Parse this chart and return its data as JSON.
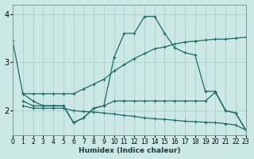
{
  "xlabel": "Humidex (Indice chaleur)",
  "bg_color": "#cce8e5",
  "grid_color": "#aacfcb",
  "line_color": "#1b6b68",
  "xlim": [
    0,
    23
  ],
  "ylim": [
    1.5,
    4.2
  ],
  "yticks": [
    2,
    3,
    4
  ],
  "xticks": [
    0,
    1,
    2,
    3,
    4,
    5,
    6,
    7,
    8,
    9,
    10,
    11,
    12,
    13,
    14,
    15,
    16,
    17,
    18,
    19,
    20,
    21,
    22,
    23
  ],
  "lines": [
    {
      "x": [
        0,
        1,
        2,
        3,
        4,
        5,
        6,
        7,
        8,
        9,
        10,
        11,
        12,
        13,
        14,
        15,
        16,
        17,
        18,
        19,
        20,
        21,
        22,
        23
      ],
      "y": [
        3.45,
        2.35,
        2.2,
        2.1,
        2.1,
        2.1,
        1.75,
        1.85,
        2.05,
        2.1,
        3.1,
        3.6,
        3.6,
        3.95,
        3.95,
        3.6,
        3.3,
        3.2,
        3.15,
        2.4,
        2.4,
        2.0,
        1.95,
        1.6
      ]
    },
    {
      "x": [
        1,
        2,
        3,
        4,
        5,
        6,
        7,
        8,
        9,
        10,
        11,
        12,
        13,
        14,
        15,
        16,
        17,
        18,
        19,
        20,
        21,
        22,
        23
      ],
      "y": [
        2.35,
        2.35,
        2.35,
        2.35,
        2.35,
        2.35,
        2.45,
        2.55,
        2.65,
        2.82,
        2.95,
        3.08,
        3.18,
        3.28,
        3.32,
        3.38,
        3.42,
        3.44,
        3.46,
        3.48,
        3.48,
        3.5,
        3.52
      ]
    },
    {
      "x": [
        1,
        2,
        3,
        4,
        5,
        6,
        7,
        8,
        9,
        10,
        11,
        12,
        13,
        14,
        15,
        16,
        17,
        18,
        19,
        20,
        21,
        22,
        23
      ],
      "y": [
        2.2,
        2.1,
        2.1,
        2.1,
        2.1,
        1.75,
        1.85,
        2.05,
        2.1,
        2.2,
        2.2,
        2.2,
        2.2,
        2.2,
        2.2,
        2.2,
        2.2,
        2.2,
        2.2,
        2.38,
        2.0,
        1.95,
        1.6
      ]
    },
    {
      "x": [
        1,
        2,
        3,
        4,
        5,
        6,
        7,
        8,
        9,
        10,
        11,
        12,
        13,
        14,
        15,
        16,
        17,
        18,
        19,
        20,
        21,
        22,
        23
      ],
      "y": [
        2.1,
        2.05,
        2.05,
        2.05,
        2.05,
        2.0,
        1.98,
        1.97,
        1.95,
        1.93,
        1.9,
        1.88,
        1.85,
        1.83,
        1.82,
        1.8,
        1.78,
        1.77,
        1.76,
        1.75,
        1.73,
        1.7,
        1.6
      ]
    }
  ]
}
